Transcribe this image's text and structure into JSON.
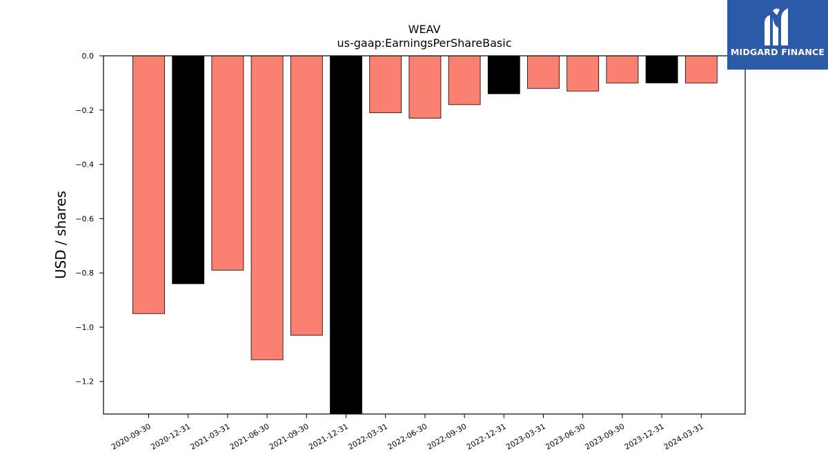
{
  "logo": {
    "text": "MIDGARD FINANCE",
    "background": "#2a5aa8"
  },
  "chart_data": {
    "type": "bar",
    "title": "WEAV",
    "subtitle": "us-gaap:EarningsPerShareBasic",
    "xlabel": "",
    "ylabel": "USD / shares",
    "ylim": [
      -1.32,
      0.0
    ],
    "yticks": [
      0.0,
      -0.2,
      -0.4,
      -0.6,
      -0.8,
      -1.0,
      -1.2
    ],
    "ytick_labels": [
      "0.0",
      "−0.2",
      "−0.4",
      "−0.6",
      "−0.8",
      "−1.0",
      "−1.2"
    ],
    "grid": false,
    "categories": [
      "2020-09-30",
      "2020-12-31",
      "2021-03-31",
      "2021-06-30",
      "2021-09-30",
      "2021-12-31",
      "2022-03-31",
      "2022-06-30",
      "2022-09-30",
      "2022-12-31",
      "2023-03-31",
      "2023-06-30",
      "2023-09-30",
      "2023-12-31",
      "2024-03-31"
    ],
    "values": [
      -0.95,
      -0.84,
      -0.79,
      -1.12,
      -1.03,
      -1.33,
      -0.21,
      -0.23,
      -0.18,
      -0.14,
      -0.12,
      -0.13,
      -0.1,
      -0.1,
      -0.1
    ],
    "bar_colors": [
      "#fa8072",
      "#000000",
      "#fa8072",
      "#fa8072",
      "#fa8072",
      "#000000",
      "#fa8072",
      "#fa8072",
      "#fa8072",
      "#000000",
      "#fa8072",
      "#fa8072",
      "#fa8072",
      "#000000",
      "#fa8072"
    ]
  }
}
